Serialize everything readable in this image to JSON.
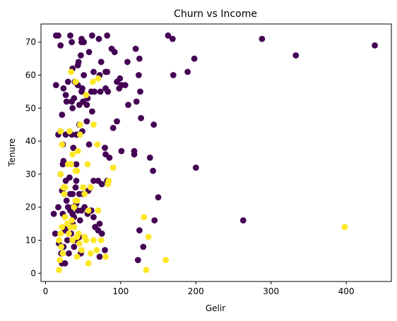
{
  "chart_data": {
    "type": "scatter",
    "title": "Churn vs Income",
    "xlabel": "Gelir",
    "ylabel": "Tenure",
    "xlim": [
      -6,
      460
    ],
    "ylim": [
      -2.5,
      75.5
    ],
    "xticks": [
      0,
      100,
      200,
      300,
      400
    ],
    "yticks": [
      0,
      10,
      20,
      30,
      40,
      50,
      60,
      70
    ],
    "grid": false,
    "legend": "none",
    "colors": {
      "churn_no": "#440154",
      "churn_yes": "#fde725"
    },
    "churn_no": [
      [
        14,
        72
      ],
      [
        17,
        72
      ],
      [
        33,
        72
      ],
      [
        48,
        71
      ],
      [
        48,
        70
      ],
      [
        51,
        70
      ],
      [
        62,
        72
      ],
      [
        71,
        71
      ],
      [
        82,
        72
      ],
      [
        163,
        72
      ],
      [
        169,
        71
      ],
      [
        288,
        71
      ],
      [
        438,
        69
      ],
      [
        20,
        69
      ],
      [
        35,
        70
      ],
      [
        58,
        67
      ],
      [
        47,
        66
      ],
      [
        88,
        68
      ],
      [
        92,
        67
      ],
      [
        120,
        68
      ],
      [
        125,
        65
      ],
      [
        198,
        65
      ],
      [
        333,
        66
      ],
      [
        189,
        61
      ],
      [
        170,
        60
      ],
      [
        43,
        63
      ],
      [
        44,
        64
      ],
      [
        36,
        62
      ],
      [
        82,
        61
      ],
      [
        80,
        61
      ],
      [
        72,
        60
      ],
      [
        74,
        64
      ],
      [
        64,
        61
      ],
      [
        95,
        58
      ],
      [
        99,
        59
      ],
      [
        109,
        64
      ],
      [
        124,
        60
      ],
      [
        51,
        60
      ],
      [
        39,
        58
      ],
      [
        30,
        58
      ],
      [
        43,
        57
      ],
      [
        14,
        57
      ],
      [
        24,
        56
      ],
      [
        48,
        55
      ],
      [
        49,
        56
      ],
      [
        56,
        53
      ],
      [
        50,
        52
      ],
      [
        61,
        55
      ],
      [
        65,
        55
      ],
      [
        80,
        56
      ],
      [
        83,
        55
      ],
      [
        98,
        56
      ],
      [
        101,
        57
      ],
      [
        106,
        57
      ],
      [
        121,
        52
      ],
      [
        110,
        51
      ],
      [
        126,
        55
      ],
      [
        35,
        52
      ],
      [
        28,
        52
      ],
      [
        27,
        54
      ],
      [
        45,
        51
      ],
      [
        55,
        51
      ],
      [
        62,
        49
      ],
      [
        73,
        55
      ],
      [
        38,
        53
      ],
      [
        36,
        50
      ],
      [
        22,
        48
      ],
      [
        20,
        43
      ],
      [
        27,
        42
      ],
      [
        41,
        42
      ],
      [
        49,
        43
      ],
      [
        45,
        45
      ],
      [
        55,
        46
      ],
      [
        90,
        44
      ],
      [
        95,
        46
      ],
      [
        127,
        47
      ],
      [
        144,
        45
      ],
      [
        17,
        42
      ],
      [
        23,
        39
      ],
      [
        35,
        42
      ],
      [
        43,
        42
      ],
      [
        37,
        38
      ],
      [
        41,
        33
      ],
      [
        58,
        39
      ],
      [
        79,
        38
      ],
      [
        80,
        36
      ],
      [
        85,
        35
      ],
      [
        101,
        37
      ],
      [
        118,
        37
      ],
      [
        118,
        36
      ],
      [
        139,
        35
      ],
      [
        82,
        28
      ],
      [
        75,
        27
      ],
      [
        70,
        28
      ],
      [
        64,
        28
      ],
      [
        60,
        26
      ],
      [
        57,
        25
      ],
      [
        50,
        24
      ],
      [
        45,
        24
      ],
      [
        40,
        26
      ],
      [
        36,
        24
      ],
      [
        32,
        29
      ],
      [
        27,
        28
      ],
      [
        23,
        33
      ],
      [
        20,
        30
      ],
      [
        22,
        25
      ],
      [
        24,
        34
      ],
      [
        25,
        24
      ],
      [
        28,
        22
      ],
      [
        30,
        20
      ],
      [
        33,
        19
      ],
      [
        36,
        18
      ],
      [
        38,
        17
      ],
      [
        41,
        21
      ],
      [
        43,
        19
      ],
      [
        46,
        16
      ],
      [
        48,
        19
      ],
      [
        52,
        20
      ],
      [
        56,
        18
      ],
      [
        61,
        19
      ],
      [
        64,
        17
      ],
      [
        66,
        14
      ],
      [
        70,
        13
      ],
      [
        72,
        15
      ],
      [
        75,
        12
      ],
      [
        23,
        18
      ],
      [
        17,
        20
      ],
      [
        11,
        18
      ],
      [
        13,
        12
      ],
      [
        18,
        9
      ],
      [
        21,
        6
      ],
      [
        24,
        8
      ],
      [
        26,
        13
      ],
      [
        29,
        10
      ],
      [
        31,
        6
      ],
      [
        34,
        12
      ],
      [
        36,
        15
      ],
      [
        38,
        8
      ],
      [
        41,
        10
      ],
      [
        45,
        11
      ],
      [
        47,
        6
      ],
      [
        26,
        3
      ],
      [
        22,
        3
      ],
      [
        79,
        7
      ],
      [
        125,
        13
      ],
      [
        130,
        8
      ],
      [
        145,
        16
      ],
      [
        150,
        23
      ],
      [
        143,
        31
      ],
      [
        200,
        32
      ],
      [
        263,
        16
      ],
      [
        123,
        4
      ],
      [
        72,
        5
      ],
      [
        41,
        28
      ],
      [
        29,
        14
      ],
      [
        33,
        24
      ],
      [
        37,
        20
      ]
    ],
    "churn_yes": [
      [
        34,
        61
      ],
      [
        40,
        58
      ],
      [
        63,
        58
      ],
      [
        70,
        59
      ],
      [
        54,
        54
      ],
      [
        46,
        45
      ],
      [
        32,
        43
      ],
      [
        22,
        39
      ],
      [
        43,
        37
      ],
      [
        40,
        31
      ],
      [
        34,
        33
      ],
      [
        42,
        31
      ],
      [
        64,
        45
      ],
      [
        69,
        39
      ],
      [
        56,
        33
      ],
      [
        90,
        32
      ],
      [
        84,
        28
      ],
      [
        83,
        27
      ],
      [
        60,
        26
      ],
      [
        52,
        24
      ],
      [
        42,
        22
      ],
      [
        38,
        20
      ],
      [
        35,
        16
      ],
      [
        33,
        14
      ],
      [
        31,
        12
      ],
      [
        29,
        15
      ],
      [
        26,
        17
      ],
      [
        22,
        14
      ],
      [
        20,
        12
      ],
      [
        18,
        10
      ],
      [
        21,
        8
      ],
      [
        23,
        6
      ],
      [
        19,
        4
      ],
      [
        18,
        1
      ],
      [
        25,
        24
      ],
      [
        24,
        26
      ],
      [
        20,
        30
      ],
      [
        20,
        43
      ],
      [
        26,
        26
      ],
      [
        36,
        10
      ],
      [
        42,
        11
      ],
      [
        45,
        9
      ],
      [
        42,
        5
      ],
      [
        48,
        7
      ],
      [
        54,
        10
      ],
      [
        52,
        11
      ],
      [
        57,
        3
      ],
      [
        60,
        6
      ],
      [
        64,
        10
      ],
      [
        68,
        7
      ],
      [
        70,
        19
      ],
      [
        74,
        10
      ],
      [
        80,
        5
      ],
      [
        40,
        22
      ],
      [
        131,
        17
      ],
      [
        137,
        11
      ],
      [
        134,
        1
      ],
      [
        160,
        4
      ],
      [
        398,
        14
      ],
      [
        57,
        19
      ],
      [
        50,
        26
      ],
      [
        30,
        33
      ],
      [
        36,
        36
      ],
      [
        44,
        12
      ],
      [
        38,
        14
      ],
      [
        46,
        42
      ]
    ]
  }
}
